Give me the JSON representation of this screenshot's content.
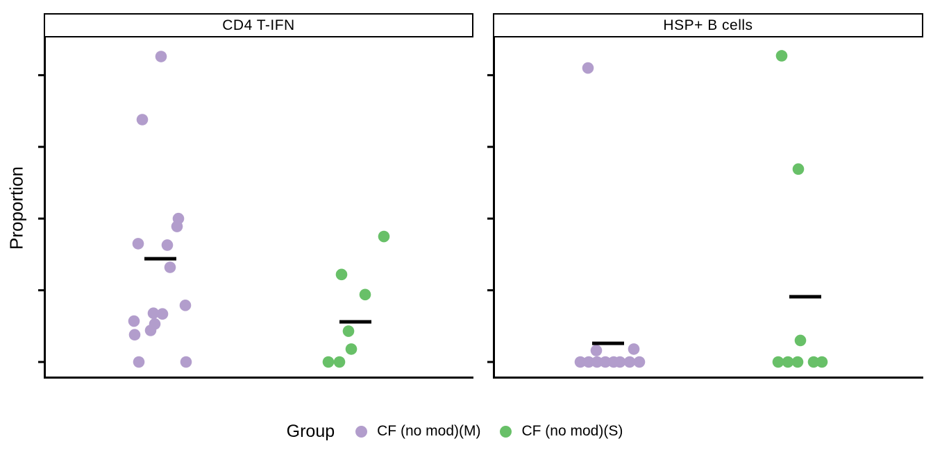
{
  "figure": {
    "ylabel": "Proportion"
  },
  "chart_data": {
    "type": "scatter",
    "subtype": "faceted jitter strip plot with median bars",
    "title": "",
    "xlabel": "",
    "ylabel": "Proportion",
    "y_axis": {
      "tick_count": 5,
      "tick_labels": [
        "",
        "",
        "",
        "",
        ""
      ],
      "note": "y-axis ticks are unlabeled; point y values are given in tick units where the bottom tick = 0 and tick spacing = 1 (panel top is about 4.7)"
    },
    "x_axis": {
      "tick_labels": [],
      "note": "no x-axis tick marks or labels; two jittered group columns per facet"
    },
    "legend": {
      "title": "Group",
      "position": "bottom",
      "items": [
        {
          "label": "CF (no mod)(M)",
          "color": "#b29dcc"
        },
        {
          "label": "CF (no mod)(S)",
          "color": "#68c068"
        }
      ]
    },
    "facets": [
      {
        "title": "CD4 T-IFN",
        "series": [
          {
            "name": "CF (no mod)(M)",
            "color": "#b29dcc",
            "points": [
              [
                232,
                4.26
              ],
              [
                205,
                3.38
              ],
              [
                257,
                2.0
              ],
              [
                255,
                1.89
              ],
              [
                199,
                1.65
              ],
              [
                241,
                1.63
              ],
              [
                245,
                1.32
              ],
              [
                267,
                0.79
              ],
              [
                221,
                0.68
              ],
              [
                234,
                0.67
              ],
              [
                193,
                0.57
              ],
              [
                223,
                0.53
              ],
              [
                217,
                0.44
              ],
              [
                194,
                0.38
              ],
              [
                200,
                0.0
              ],
              [
                268,
                0.0
              ]
            ],
            "median_bar": {
              "x": 231,
              "y": 1.44
            }
          },
          {
            "name": "CF (no mod)(S)",
            "color": "#68c068",
            "points": [
              [
                553,
                1.75
              ],
              [
                492,
                1.22
              ],
              [
                526,
                0.94
              ],
              [
                502,
                0.43
              ],
              [
                506,
                0.18
              ],
              [
                473,
                0.0
              ],
              [
                489,
                0.0
              ]
            ],
            "median_bar": {
              "x": 512,
              "y": 0.56
            }
          }
        ]
      },
      {
        "title": "HSP+ B cells",
        "series": [
          {
            "name": "CF (no mod)(M)",
            "color": "#b29dcc",
            "points": [
              [
                847,
                4.1
              ],
              [
                859,
                0.16
              ],
              [
                913,
                0.18
              ],
              [
                836,
                0.0
              ],
              [
                848,
                0.0
              ],
              [
                860,
                0.0
              ],
              [
                872,
                0.0
              ],
              [
                884,
                0.0
              ],
              [
                893,
                0.0
              ],
              [
                907,
                0.0
              ],
              [
                921,
                0.0
              ]
            ],
            "median_bar": {
              "x": 876,
              "y": 0.26
            }
          },
          {
            "name": "CF (no mod)(S)",
            "color": "#68c068",
            "points": [
              [
                1126,
                4.27
              ],
              [
                1150,
                2.69
              ],
              [
                1153,
                0.3
              ],
              [
                1121,
                0.0
              ],
              [
                1135,
                0.0
              ],
              [
                1149,
                0.0
              ],
              [
                1172,
                0.0
              ],
              [
                1184,
                0.0
              ]
            ],
            "median_bar": {
              "x": 1160,
              "y": 0.91
            }
          }
        ]
      }
    ]
  }
}
